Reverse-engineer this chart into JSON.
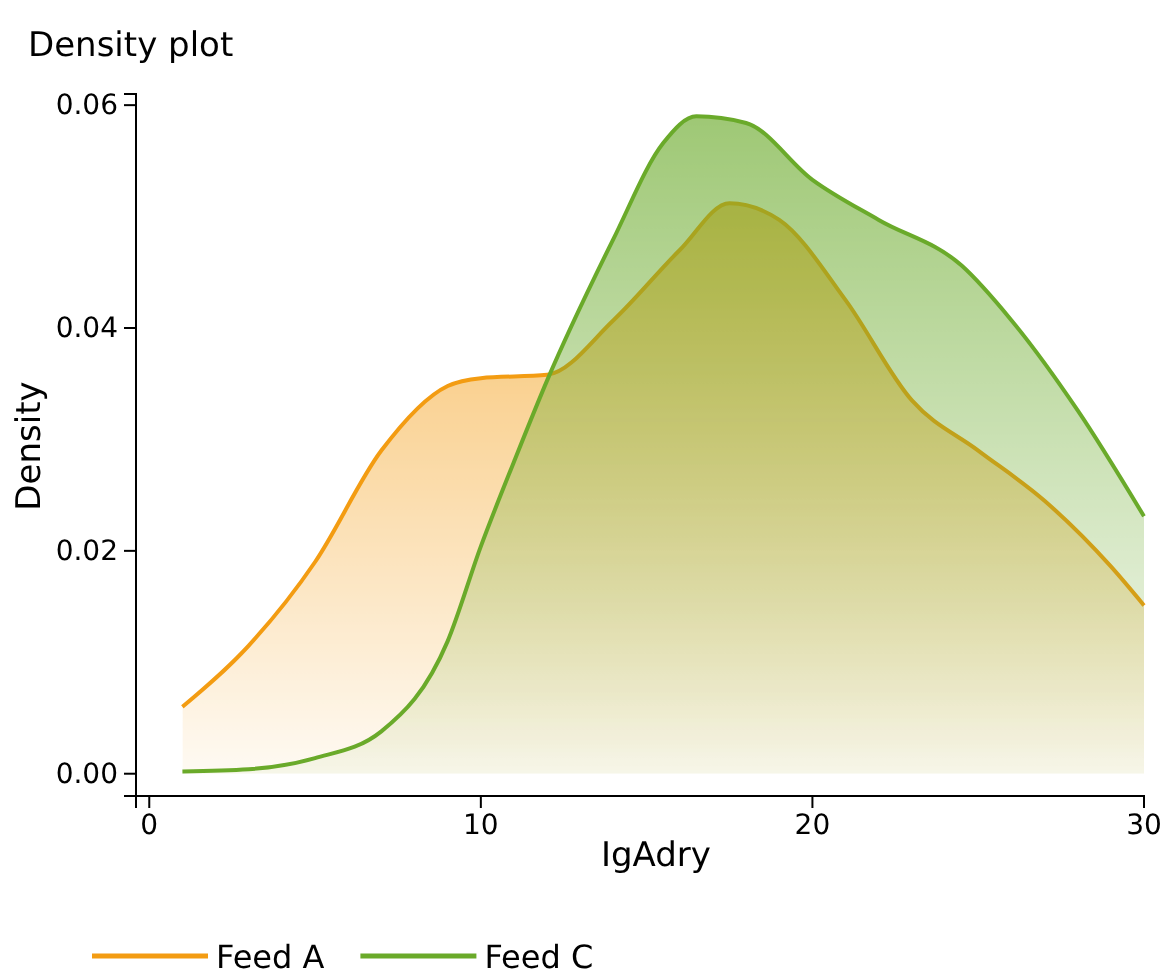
{
  "chart_data": {
    "type": "area",
    "title": "Density plot",
    "xlabel": "IgAdry",
    "ylabel": "Density",
    "xlim": [
      -0.4,
      30
    ],
    "ylim": [
      -0.002,
      0.061
    ],
    "xticks": [
      0,
      10,
      20,
      30
    ],
    "yticks": [
      {
        "value": 0,
        "label": "0.00"
      },
      {
        "value": 0.02,
        "label": "0.02"
      },
      {
        "value": 0.04,
        "label": "0.04"
      },
      {
        "value": 0.06,
        "label": "0.06"
      }
    ],
    "legend": "bottom left",
    "grid": false,
    "series": [
      {
        "name": "Feed A",
        "color": "#f39c12",
        "x": [
          1,
          3,
          5,
          7,
          9,
          10,
          12,
          14,
          16,
          17.5,
          19,
          21,
          23,
          25,
          27,
          29,
          30
        ],
        "values": [
          0.006,
          0.0115,
          0.019,
          0.029,
          0.0348,
          0.0355,
          0.0358,
          0.0407,
          0.047,
          0.0512,
          0.0497,
          0.0425,
          0.0335,
          0.029,
          0.0245,
          0.0186,
          0.0151
        ]
      },
      {
        "name": "Feed C",
        "color": "#6aaa2a",
        "x": [
          1,
          3,
          5,
          7,
          9,
          10,
          11,
          12,
          14,
          15.5,
          16.5,
          18,
          20,
          22,
          24.5,
          26,
          28,
          30
        ],
        "values": [
          0.0002,
          0.0004,
          0.0014,
          0.0038,
          0.0119,
          0.0204,
          0.028,
          0.0353,
          0.048,
          0.0566,
          0.059,
          0.0584,
          0.0533,
          0.0497,
          0.0456,
          0.0407,
          0.0326,
          0.0231
        ]
      }
    ]
  }
}
